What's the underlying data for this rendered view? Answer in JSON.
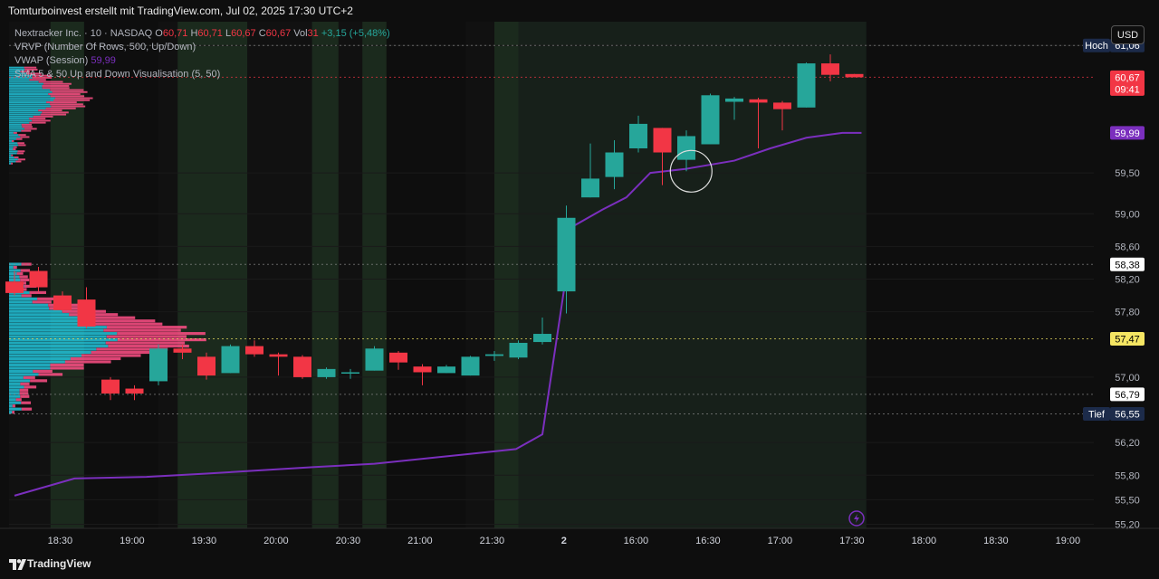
{
  "header": {
    "title": "Tomturboinvest erstellt mit TradingView.com, Jul 02, 2025 17:30 UTC+2"
  },
  "legend": {
    "symbol": "Nextracker Inc. · 10 · NASDAQ",
    "open_label": "O",
    "open": "60,71",
    "high_label": "H",
    "high": "60,71",
    "low_label": "L",
    "low": "60,67",
    "close_label": "C",
    "close": "60,67",
    "vol_label": "Vol",
    "vol": "31",
    "change": "+3,15 (+5,48%)",
    "indicator1": "VRVP (Number Of Rows, 500, Up/Down)",
    "indicator2": "VWAP (Session)",
    "indicator2_value": "59,99",
    "indicator3": "SMA 5 & 50 Up and Down Visualisation (5, 50)"
  },
  "currency_button": "USD",
  "footer": {
    "brand": "TradingView"
  },
  "colors": {
    "up": "#26a69a",
    "down": "#f23645",
    "vwap": "#7b2fbe",
    "profile_up": "#22c3d9",
    "profile_down": "#ff4f86",
    "poc": "#f5e663"
  },
  "chart_data": {
    "type": "candlestick",
    "ylim": [
      55.15,
      61.35
    ],
    "y_ticks": [
      {
        "label": "61,06",
        "value": 61.06
      },
      {
        "label": "59,50",
        "value": 59.5
      },
      {
        "label": "59,00",
        "value": 59.0
      },
      {
        "label": "58,60",
        "value": 58.6
      },
      {
        "label": "58,20",
        "value": 58.2
      },
      {
        "label": "57,80",
        "value": 57.8
      },
      {
        "label": "57,00",
        "value": 57.0
      },
      {
        "label": "56,20",
        "value": 56.2
      },
      {
        "label": "55,80",
        "value": 55.8
      },
      {
        "label": "55,50",
        "value": 55.5
      },
      {
        "label": "55,20",
        "value": 55.2
      }
    ],
    "x_ticks": [
      {
        "label": "18:30",
        "slot": 1.9
      },
      {
        "label": "19:00",
        "slot": 4.9
      },
      {
        "label": "19:30",
        "slot": 7.9
      },
      {
        "label": "20:00",
        "slot": 10.9
      },
      {
        "label": "20:30",
        "slot": 13.9
      },
      {
        "label": "21:00",
        "slot": 16.9
      },
      {
        "label": "21:30",
        "slot": 19.9
      },
      {
        "label": "2",
        "slot": 22.9
      },
      {
        "label": "16:00",
        "slot": 25.9
      },
      {
        "label": "16:30",
        "slot": 28.9
      },
      {
        "label": "17:00",
        "slot": 31.9
      },
      {
        "label": "17:30",
        "slot": 34.9
      },
      {
        "label": "18:00",
        "slot": 37.9
      },
      {
        "label": "18:30",
        "slot": 40.9
      },
      {
        "label": "19:00",
        "slot": 43.9
      }
    ],
    "candles": [
      {
        "o": 58.17,
        "h": 58.3,
        "l": 58.0,
        "c": 58.03
      },
      {
        "o": 58.3,
        "h": 58.35,
        "l": 58.05,
        "c": 58.1
      },
      {
        "o": 58.0,
        "h": 58.05,
        "l": 57.8,
        "c": 57.82
      },
      {
        "o": 57.95,
        "h": 58.1,
        "l": 57.6,
        "c": 57.62
      },
      {
        "o": 56.97,
        "h": 57.0,
        "l": 56.72,
        "c": 56.8
      },
      {
        "o": 56.86,
        "h": 56.9,
        "l": 56.72,
        "c": 56.8
      },
      {
        "o": 56.95,
        "h": 57.4,
        "l": 56.9,
        "c": 57.35
      },
      {
        "o": 57.35,
        "h": 57.4,
        "l": 57.22,
        "c": 57.3
      },
      {
        "o": 57.25,
        "h": 57.3,
        "l": 56.97,
        "c": 57.02
      },
      {
        "o": 57.05,
        "h": 57.4,
        "l": 57.05,
        "c": 57.38
      },
      {
        "o": 57.38,
        "h": 57.45,
        "l": 57.25,
        "c": 57.28
      },
      {
        "o": 57.28,
        "h": 57.3,
        "l": 57.02,
        "c": 57.25
      },
      {
        "o": 57.25,
        "h": 57.27,
        "l": 56.98,
        "c": 57.0
      },
      {
        "o": 57.0,
        "h": 57.12,
        "l": 56.98,
        "c": 57.1
      },
      {
        "o": 57.05,
        "h": 57.1,
        "l": 56.98,
        "c": 57.06
      },
      {
        "o": 57.08,
        "h": 57.38,
        "l": 57.08,
        "c": 57.35
      },
      {
        "o": 57.3,
        "h": 57.32,
        "l": 57.09,
        "c": 57.18
      },
      {
        "o": 57.13,
        "h": 57.16,
        "l": 56.9,
        "c": 57.06
      },
      {
        "o": 57.05,
        "h": 57.15,
        "l": 57.05,
        "c": 57.13
      },
      {
        "o": 57.02,
        "h": 57.26,
        "l": 57.02,
        "c": 57.25
      },
      {
        "o": 57.26,
        "h": 57.32,
        "l": 57.2,
        "c": 57.28
      },
      {
        "o": 57.24,
        "h": 57.45,
        "l": 57.22,
        "c": 57.42
      },
      {
        "o": 57.43,
        "h": 57.73,
        "l": 57.4,
        "c": 57.53
      },
      {
        "o": 58.05,
        "h": 59.1,
        "l": 57.78,
        "c": 58.95
      },
      {
        "o": 59.2,
        "h": 59.86,
        "l": 59.2,
        "c": 59.43
      },
      {
        "o": 59.45,
        "h": 59.9,
        "l": 59.3,
        "c": 59.75
      },
      {
        "o": 59.8,
        "h": 60.2,
        "l": 59.75,
        "c": 60.1
      },
      {
        "o": 60.05,
        "h": 60.05,
        "l": 59.35,
        "c": 59.75
      },
      {
        "o": 59.66,
        "h": 60.02,
        "l": 59.52,
        "c": 59.95
      },
      {
        "o": 59.85,
        "h": 60.47,
        "l": 59.85,
        "c": 60.45
      },
      {
        "o": 60.37,
        "h": 60.43,
        "l": 60.15,
        "c": 60.41
      },
      {
        "o": 60.4,
        "h": 60.42,
        "l": 59.8,
        "c": 60.36
      },
      {
        "o": 60.36,
        "h": 60.38,
        "l": 60.02,
        "c": 60.28
      },
      {
        "o": 60.3,
        "h": 60.85,
        "l": 60.3,
        "c": 60.84
      },
      {
        "o": 60.84,
        "h": 60.95,
        "l": 60.62,
        "c": 60.7
      },
      {
        "o": 60.71,
        "h": 60.71,
        "l": 60.67,
        "c": 60.67
      }
    ],
    "vwap": [
      {
        "slot": 0,
        "v": 55.55
      },
      {
        "slot": 2.5,
        "v": 55.76
      },
      {
        "slot": 5.5,
        "v": 55.78
      },
      {
        "slot": 8,
        "v": 55.82
      },
      {
        "slot": 12.5,
        "v": 55.9
      },
      {
        "slot": 15,
        "v": 55.94
      },
      {
        "slot": 20.9,
        "v": 56.12
      },
      {
        "slot": 22,
        "v": 56.3
      },
      {
        "slot": 23.3,
        "v": 58.85
      },
      {
        "slot": 24.5,
        "v": 59.05
      },
      {
        "slot": 25.5,
        "v": 59.2
      },
      {
        "slot": 26.5,
        "v": 59.5
      },
      {
        "slot": 28,
        "v": 59.55
      },
      {
        "slot": 30,
        "v": 59.65
      },
      {
        "slot": 31.5,
        "v": 59.8
      },
      {
        "slot": 33,
        "v": 59.93
      },
      {
        "slot": 34.5,
        "v": 59.99
      },
      {
        "slot": 35.3,
        "v": 59.99
      }
    ],
    "price_lines": [
      {
        "value": 61.06,
        "label": "61,06",
        "tag": "Hoch",
        "kind": "high"
      },
      {
        "value": 60.67,
        "label": "60,67",
        "sublabel": "09:41",
        "kind": "last"
      },
      {
        "value": 59.99,
        "label": "59,99",
        "kind": "vwap"
      },
      {
        "value": 58.38,
        "label": "58,38",
        "kind": "level"
      },
      {
        "value": 57.47,
        "label": "57,47",
        "kind": "poc"
      },
      {
        "value": 56.79,
        "label": "56,79",
        "kind": "level"
      },
      {
        "value": 56.55,
        "label": "56,55",
        "tag": "Tief",
        "kind": "low"
      }
    ],
    "volume_profile": {
      "upper": {
        "from": 59.6,
        "to": 60.8,
        "max_value": 60
      },
      "lower": {
        "from": 56.55,
        "to": 58.4,
        "max_value": 200,
        "poc": 57.47
      }
    },
    "sessions": {
      "dark": [
        [
          -1,
          1.5
        ],
        [
          6,
          15.2
        ],
        [
          18.8,
          20
        ]
      ],
      "green": [
        [
          1.5,
          2.9
        ],
        [
          6.8,
          9.7
        ],
        [
          12.4,
          13.5
        ],
        [
          14.5,
          15.5
        ],
        [
          20,
          21
        ]
      ],
      "regular": [
        21,
        35.5
      ]
    },
    "annotation": {
      "slot": 28.2,
      "value": 59.52
    }
  }
}
